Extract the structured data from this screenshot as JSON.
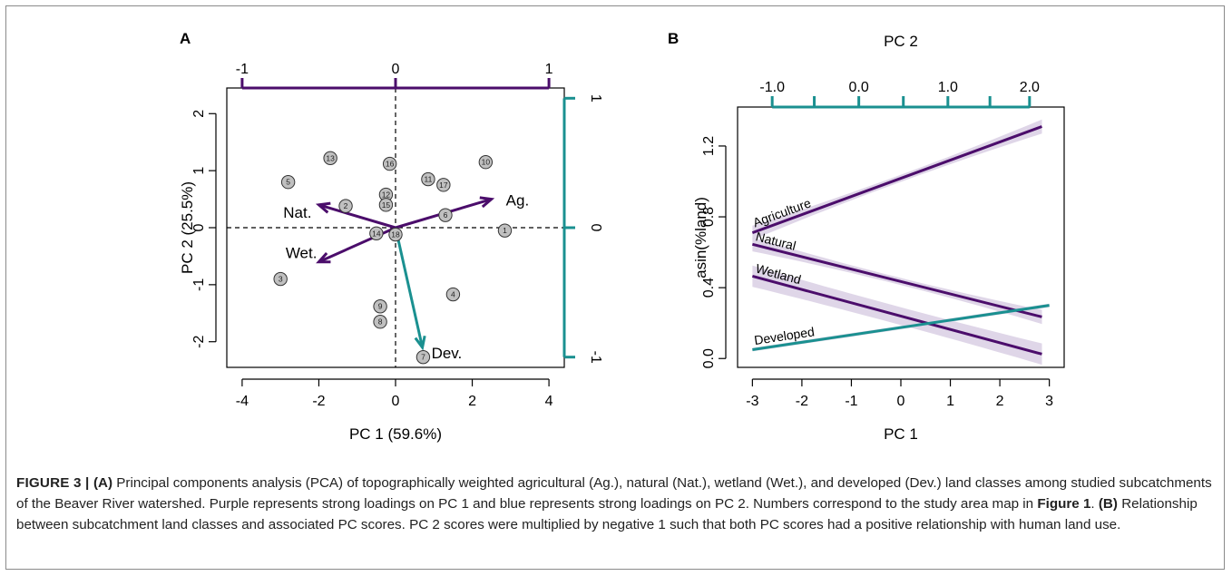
{
  "panels": {
    "a": {
      "label": "A"
    },
    "b": {
      "label": "B"
    }
  },
  "colors": {
    "purple": "#4b0d6b",
    "teal": "#1a9090",
    "ribbon": "#dcd1e6",
    "point_fill": "#c0c0c0"
  },
  "chart_data": [
    {
      "type": "scatter",
      "panel": "A",
      "xlabel": "PC 1 (59.6%)",
      "ylabel": "PC 2 (25.5%)",
      "xlim": [
        -4.4,
        4.4
      ],
      "ylim": [
        -2.45,
        2.45
      ],
      "bottom_ticks": [
        -4,
        -2,
        0,
        2,
        4
      ],
      "left_ticks": [
        -2,
        -1,
        0,
        1,
        2
      ],
      "top_axis": {
        "ticks": [
          -1,
          0,
          1
        ],
        "color": "purple"
      },
      "right_axis": {
        "ticks": [
          -1,
          0,
          1
        ],
        "color": "teal"
      },
      "reference_lines": {
        "x": 0,
        "y": 0,
        "style": "dashed"
      },
      "points": [
        {
          "id": "1",
          "x": 2.85,
          "y": -0.05
        },
        {
          "id": "2",
          "x": -1.3,
          "y": 0.38
        },
        {
          "id": "3",
          "x": -3.0,
          "y": -0.9
        },
        {
          "id": "4",
          "x": 1.5,
          "y": -1.17
        },
        {
          "id": "5",
          "x": -2.8,
          "y": 0.8
        },
        {
          "id": "6",
          "x": 1.3,
          "y": 0.22
        },
        {
          "id": "7",
          "x": 0.72,
          "y": -2.27
        },
        {
          "id": "8",
          "x": -0.4,
          "y": -1.65
        },
        {
          "id": "9",
          "x": -0.4,
          "y": -1.38
        },
        {
          "id": "10",
          "x": 2.35,
          "y": 1.15
        },
        {
          "id": "11",
          "x": 0.85,
          "y": 0.85
        },
        {
          "id": "12",
          "x": -0.25,
          "y": 0.58
        },
        {
          "id": "13",
          "x": -1.7,
          "y": 1.22
        },
        {
          "id": "14",
          "x": -0.5,
          "y": -0.1
        },
        {
          "id": "15",
          "x": -0.25,
          "y": 0.4
        },
        {
          "id": "16",
          "x": -0.15,
          "y": 1.12
        },
        {
          "id": "17",
          "x": 1.25,
          "y": 0.75
        },
        {
          "id": "18",
          "x": 0.0,
          "y": -0.12
        }
      ],
      "loadings": [
        {
          "label": "Ag.",
          "x": 2.5,
          "y": 0.5,
          "color": "purple"
        },
        {
          "label": "Nat.",
          "x": -2.0,
          "y": 0.4,
          "color": "purple"
        },
        {
          "label": "Wet.",
          "x": -2.0,
          "y": -0.6,
          "color": "purple"
        },
        {
          "label": "Dev.",
          "x": 0.7,
          "y": -2.1,
          "color": "teal"
        }
      ]
    },
    {
      "type": "line",
      "panel": "B",
      "xlabel": "PC 1",
      "ylabel": "asin(%land)",
      "top_label": "PC 2",
      "xlim": [
        -3.3,
        3.3
      ],
      "ylim": [
        -0.05,
        1.42
      ],
      "bottom_ticks": [
        -3,
        -2,
        -1,
        0,
        1,
        2,
        3
      ],
      "left_ticks": [
        0.0,
        0.4,
        0.8,
        1.2
      ],
      "top_ticks": {
        "labeled": [
          "-1.0",
          "0.0",
          "1.0",
          "2.0"
        ],
        "labeled_positions": [
          -2.6,
          -0.85,
          0.95,
          2.6
        ],
        "tick_positions": [
          -2.6,
          -1.75,
          -0.85,
          0.05,
          0.95,
          1.8,
          2.6
        ]
      },
      "series": [
        {
          "name": "Agriculture",
          "color": "purple",
          "x": [
            -3.0,
            2.85
          ],
          "y": [
            0.71,
            1.31
          ],
          "band": [
            0.02,
            0.04
          ]
        },
        {
          "name": "Natural",
          "color": "purple",
          "x": [
            -3.0,
            2.85
          ],
          "y": [
            0.645,
            0.235
          ],
          "band": [
            0.02,
            0.04
          ]
        },
        {
          "name": "Wetland",
          "color": "purple",
          "x": [
            -3.0,
            2.85
          ],
          "y": [
            0.465,
            0.025
          ],
          "band": [
            0.05,
            0.06
          ]
        },
        {
          "name": "Developed",
          "color": "teal",
          "x": [
            -3.0,
            3.0
          ],
          "y": [
            0.05,
            0.3
          ],
          "band": [
            0.01,
            0.01
          ]
        }
      ]
    }
  ],
  "caption": {
    "lead": "FIGURE 3 | ",
    "a_tag": "(A)",
    "a_text_1": " Principal components analysis (PCA) of topographically weighted agricultural (Ag.), natural (Nat.), wetland (Wet.), and developed (Dev.) land classes among studied subcatchments of the Beaver River watershed. Purple represents strong loadings on PC 1 and blue represents strong loadings on PC 2. Numbers correspond to the study area map in ",
    "fig_ref": "Figure 1",
    "a_text_2": ". ",
    "b_tag": "(B)",
    "b_text": " Relationship between subcatchment land classes and associated PC scores. PC 2 scores were multiplied by negative 1 such that both PC scores had a positive relationship with human land use."
  }
}
